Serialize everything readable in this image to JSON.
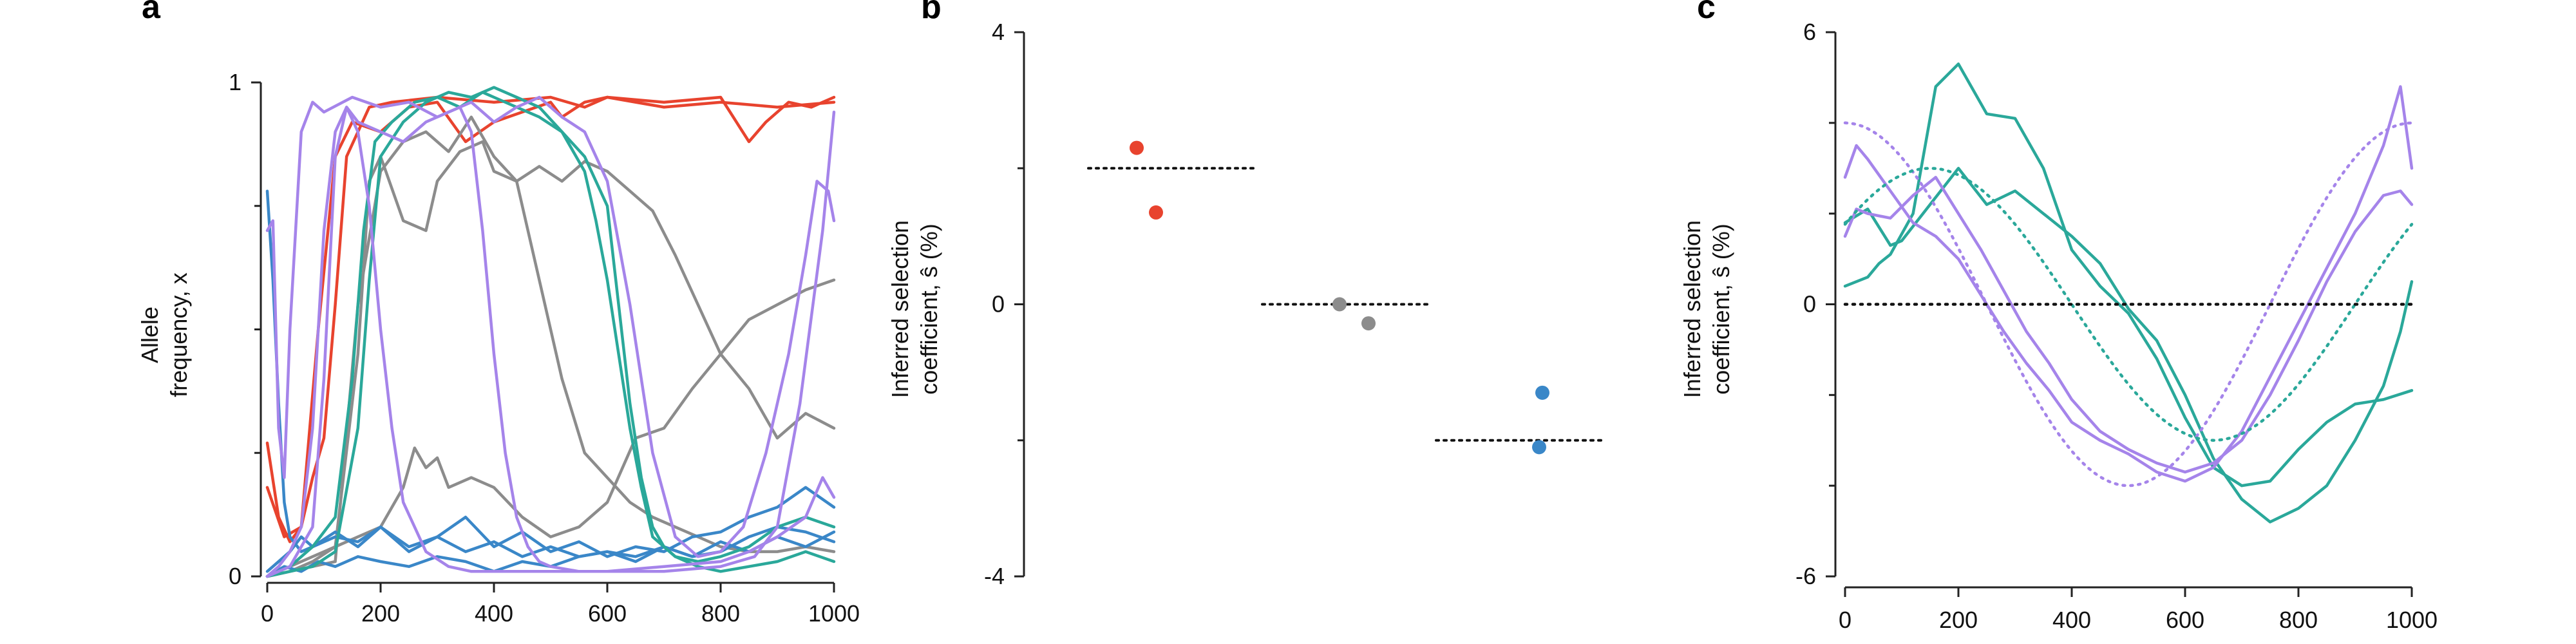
{
  "colors": {
    "red": "#e8432e",
    "gray": "#8c8c8c",
    "blue": "#3a87c8",
    "teal": "#2aa89a",
    "purple": "#a584ea",
    "axis": "#222222",
    "dotted": "#111111"
  },
  "chart_data": [
    {
      "panel": "a",
      "type": "line",
      "title": "",
      "ylabel_lines": [
        "Allele",
        "frequency, x"
      ],
      "xlabel": "",
      "xlim": [
        0,
        1000
      ],
      "ylim": [
        0,
        1
      ],
      "xticks": [
        "0",
        "200",
        "400",
        "600",
        "800",
        "1000"
      ],
      "yticks": [
        "0",
        "1"
      ],
      "series": [
        {
          "color": "red",
          "x": [
            0,
            20,
            40,
            60,
            80,
            100,
            120,
            140,
            180,
            220,
            300,
            400,
            500,
            560,
            600,
            700,
            800,
            850,
            880,
            920,
            960,
            1000
          ],
          "y": [
            0.27,
            0.12,
            0.07,
            0.1,
            0.2,
            0.28,
            0.55,
            0.85,
            0.95,
            0.96,
            0.97,
            0.96,
            0.97,
            0.95,
            0.97,
            0.96,
            0.97,
            0.88,
            0.92,
            0.96,
            0.95,
            0.97
          ]
        },
        {
          "color": "red",
          "x": [
            0,
            30,
            60,
            90,
            120,
            150,
            200,
            250,
            300,
            350,
            400,
            450,
            500,
            520,
            560,
            600,
            700,
            800,
            900,
            1000
          ],
          "y": [
            0.18,
            0.08,
            0.1,
            0.5,
            0.85,
            0.92,
            0.9,
            0.95,
            0.96,
            0.88,
            0.92,
            0.94,
            0.96,
            0.93,
            0.96,
            0.97,
            0.95,
            0.96,
            0.95,
            0.96
          ]
        },
        {
          "color": "gray",
          "x": [
            0,
            40,
            80,
            120,
            160,
            200,
            240,
            260,
            280,
            300,
            320,
            360,
            400,
            450,
            500,
            550,
            600,
            650,
            700,
            750,
            800,
            850,
            900,
            950,
            1000
          ],
          "y": [
            0.0,
            0.02,
            0.04,
            0.06,
            0.08,
            0.1,
            0.18,
            0.26,
            0.22,
            0.24,
            0.18,
            0.2,
            0.18,
            0.12,
            0.08,
            0.1,
            0.15,
            0.28,
            0.3,
            0.38,
            0.45,
            0.52,
            0.55,
            0.58,
            0.6
          ]
        },
        {
          "color": "gray",
          "x": [
            0,
            40,
            80,
            120,
            160,
            180,
            200,
            240,
            280,
            300,
            340,
            380,
            400,
            440,
            480,
            520,
            560,
            600,
            640,
            680,
            720,
            760,
            800,
            850,
            900,
            950,
            1000
          ],
          "y": [
            0.0,
            0.01,
            0.03,
            0.06,
            0.45,
            0.8,
            0.85,
            0.72,
            0.7,
            0.8,
            0.86,
            0.88,
            0.82,
            0.8,
            0.83,
            0.8,
            0.84,
            0.82,
            0.78,
            0.74,
            0.65,
            0.55,
            0.45,
            0.38,
            0.28,
            0.33,
            0.3
          ]
        },
        {
          "color": "gray",
          "x": [
            0,
            40,
            80,
            120,
            160,
            200,
            240,
            280,
            320,
            360,
            400,
            440,
            480,
            520,
            560,
            600,
            640,
            680,
            720,
            760,
            800,
            850,
            900,
            950,
            1000
          ],
          "y": [
            0.0,
            0.01,
            0.02,
            0.03,
            0.55,
            0.82,
            0.88,
            0.9,
            0.86,
            0.93,
            0.85,
            0.8,
            0.6,
            0.4,
            0.25,
            0.2,
            0.15,
            0.12,
            0.1,
            0.08,
            0.06,
            0.05,
            0.05,
            0.06,
            0.05
          ]
        },
        {
          "color": "blue",
          "x": [
            0,
            10,
            20,
            30,
            40,
            60,
            80,
            120,
            160,
            200,
            250,
            300,
            350,
            400,
            450,
            500,
            550,
            600,
            650,
            700,
            750,
            800,
            850,
            900,
            950,
            1000
          ],
          "y": [
            0.78,
            0.6,
            0.35,
            0.15,
            0.08,
            0.05,
            0.06,
            0.08,
            0.07,
            0.1,
            0.06,
            0.08,
            0.05,
            0.07,
            0.04,
            0.06,
            0.04,
            0.05,
            0.04,
            0.06,
            0.04,
            0.05,
            0.08,
            0.1,
            0.09,
            0.07
          ]
        },
        {
          "color": "blue",
          "x": [
            0,
            20,
            40,
            60,
            80,
            120,
            160,
            200,
            250,
            300,
            350,
            400,
            450,
            500,
            550,
            600,
            650,
            700,
            750,
            800,
            850,
            900,
            950,
            1000
          ],
          "y": [
            0.01,
            0.03,
            0.05,
            0.08,
            0.06,
            0.09,
            0.06,
            0.1,
            0.05,
            0.08,
            0.12,
            0.06,
            0.09,
            0.05,
            0.07,
            0.04,
            0.06,
            0.05,
            0.08,
            0.09,
            0.12,
            0.14,
            0.18,
            0.14
          ]
        },
        {
          "color": "blue",
          "x": [
            0,
            30,
            60,
            90,
            120,
            160,
            200,
            250,
            300,
            350,
            400,
            450,
            500,
            550,
            600,
            650,
            700,
            750,
            800,
            850,
            900,
            950,
            1000
          ],
          "y": [
            0.0,
            0.02,
            0.01,
            0.03,
            0.02,
            0.04,
            0.03,
            0.02,
            0.04,
            0.03,
            0.01,
            0.03,
            0.02,
            0.04,
            0.05,
            0.03,
            0.06,
            0.04,
            0.07,
            0.05,
            0.08,
            0.06,
            0.09
          ]
        },
        {
          "color": "teal",
          "x": [
            0,
            40,
            80,
            120,
            150,
            170,
            190,
            220,
            260,
            300,
            340,
            380,
            400,
            440,
            480,
            520,
            560,
            600,
            620,
            640,
            660,
            680,
            700,
            720,
            760,
            800,
            850,
            900,
            950,
            1000
          ],
          "y": [
            0.0,
            0.02,
            0.06,
            0.12,
            0.4,
            0.7,
            0.88,
            0.92,
            0.96,
            0.97,
            0.95,
            0.98,
            0.97,
            0.95,
            0.93,
            0.9,
            0.85,
            0.75,
            0.55,
            0.35,
            0.2,
            0.1,
            0.06,
            0.04,
            0.03,
            0.04,
            0.06,
            0.1,
            0.12,
            0.1
          ]
        },
        {
          "color": "teal",
          "x": [
            0,
            40,
            80,
            120,
            160,
            180,
            200,
            240,
            280,
            320,
            360,
            400,
            440,
            480,
            520,
            560,
            580,
            600,
            620,
            640,
            660,
            680,
            720,
            760,
            800,
            850,
            900,
            950,
            1000
          ],
          "y": [
            0.0,
            0.01,
            0.02,
            0.05,
            0.3,
            0.6,
            0.85,
            0.92,
            0.96,
            0.98,
            0.97,
            0.99,
            0.97,
            0.95,
            0.9,
            0.82,
            0.72,
            0.6,
            0.45,
            0.3,
            0.18,
            0.08,
            0.04,
            0.02,
            0.01,
            0.02,
            0.03,
            0.05,
            0.03
          ]
        },
        {
          "color": "purple",
          "x": [
            0,
            10,
            20,
            30,
            40,
            60,
            80,
            100,
            150,
            200,
            250,
            300,
            340,
            360,
            380,
            400,
            420,
            440,
            460,
            480,
            500,
            550,
            600,
            700,
            800,
            850,
            900,
            950,
            980,
            1000
          ],
          "y": [
            0.7,
            0.72,
            0.3,
            0.2,
            0.5,
            0.9,
            0.96,
            0.94,
            0.97,
            0.95,
            0.96,
            0.93,
            0.95,
            0.9,
            0.7,
            0.45,
            0.25,
            0.12,
            0.06,
            0.03,
            0.02,
            0.01,
            0.01,
            0.02,
            0.03,
            0.05,
            0.08,
            0.12,
            0.2,
            0.16
          ]
        },
        {
          "color": "purple",
          "x": [
            0,
            20,
            40,
            60,
            80,
            100,
            120,
            140,
            160,
            200,
            240,
            280,
            320,
            360,
            400,
            440,
            480,
            520,
            560,
            600,
            640,
            680,
            720,
            760,
            800,
            840,
            880,
            920,
            950,
            970,
            990,
            1000
          ],
          "y": [
            0.0,
            0.02,
            0.05,
            0.1,
            0.3,
            0.7,
            0.9,
            0.95,
            0.92,
            0.9,
            0.88,
            0.92,
            0.94,
            0.96,
            0.92,
            0.95,
            0.97,
            0.93,
            0.9,
            0.8,
            0.55,
            0.25,
            0.08,
            0.04,
            0.05,
            0.1,
            0.25,
            0.45,
            0.65,
            0.8,
            0.78,
            0.72
          ]
        },
        {
          "color": "purple",
          "x": [
            0,
            40,
            80,
            100,
            120,
            140,
            160,
            180,
            200,
            220,
            240,
            280,
            320,
            360,
            400,
            500,
            600,
            700,
            800,
            860,
            900,
            940,
            980,
            1000
          ],
          "y": [
            0.0,
            0.02,
            0.1,
            0.4,
            0.85,
            0.95,
            0.9,
            0.75,
            0.5,
            0.3,
            0.15,
            0.05,
            0.02,
            0.01,
            0.01,
            0.01,
            0.01,
            0.01,
            0.02,
            0.04,
            0.1,
            0.35,
            0.7,
            0.94
          ]
        }
      ]
    },
    {
      "panel": "b",
      "type": "scatter",
      "title": "",
      "ylabel_lines": [
        "Inferred selection",
        "coefficient, ŝ (%)"
      ],
      "ylim": [
        -4,
        4
      ],
      "yticks": [
        "4",
        "0",
        "-4"
      ],
      "groups": [
        {
          "color": "red",
          "true_s": 2,
          "points": [
            2.3,
            1.35
          ]
        },
        {
          "color": "gray",
          "true_s": 0,
          "points": [
            0.0,
            -0.28
          ]
        },
        {
          "color": "blue",
          "true_s": -2,
          "points": [
            -1.3,
            -2.1
          ]
        }
      ]
    },
    {
      "panel": "c",
      "type": "line",
      "title": "",
      "ylabel_lines": [
        "Inferred selection",
        "coefficient, ŝ (%)"
      ],
      "xlim": [
        0,
        1000
      ],
      "ylim": [
        -6,
        6
      ],
      "xticks": [
        "0",
        "200",
        "400",
        "600",
        "800",
        "1000"
      ],
      "yticks": [
        "6",
        "0",
        "-6"
      ],
      "series": [
        {
          "color": "teal",
          "style": "solid",
          "x": [
            0,
            40,
            60,
            80,
            120,
            160,
            200,
            250,
            300,
            350,
            400,
            450,
            500,
            550,
            600,
            650,
            700,
            750,
            800,
            850,
            900,
            950,
            1000
          ],
          "y": [
            0.4,
            0.6,
            0.9,
            1.1,
            2.0,
            4.8,
            5.3,
            4.2,
            4.1,
            3.0,
            1.2,
            0.4,
            -0.2,
            -1.2,
            -2.5,
            -3.6,
            -4.0,
            -3.9,
            -3.2,
            -2.6,
            -2.2,
            -2.1,
            -1.9
          ]
        },
        {
          "color": "teal",
          "style": "solid",
          "x": [
            0,
            40,
            60,
            80,
            100,
            150,
            200,
            250,
            300,
            350,
            400,
            450,
            500,
            550,
            600,
            650,
            700,
            750,
            800,
            850,
            900,
            950,
            980,
            1000
          ],
          "y": [
            1.8,
            2.1,
            1.7,
            1.3,
            1.4,
            2.2,
            3.0,
            2.2,
            2.5,
            2.0,
            1.5,
            0.9,
            -0.1,
            -0.8,
            -2.0,
            -3.4,
            -4.3,
            -4.8,
            -4.5,
            -4.0,
            -3.0,
            -1.8,
            -0.6,
            0.5
          ]
        },
        {
          "color": "purple",
          "style": "solid",
          "x": [
            0,
            20,
            40,
            80,
            120,
            160,
            200,
            240,
            280,
            320,
            360,
            400,
            450,
            500,
            550,
            600,
            650,
            700,
            750,
            800,
            850,
            900,
            950,
            980,
            1000
          ],
          "y": [
            2.8,
            3.5,
            3.2,
            2.5,
            1.8,
            1.5,
            1.0,
            0.2,
            -0.6,
            -1.3,
            -1.9,
            -2.6,
            -3.0,
            -3.3,
            -3.7,
            -3.9,
            -3.6,
            -2.8,
            -1.6,
            -0.4,
            0.8,
            2.0,
            3.5,
            4.8,
            3.0
          ]
        },
        {
          "color": "purple",
          "style": "solid",
          "x": [
            0,
            20,
            40,
            80,
            120,
            160,
            200,
            240,
            280,
            320,
            360,
            400,
            450,
            500,
            550,
            600,
            650,
            700,
            750,
            800,
            850,
            900,
            950,
            980,
            1000
          ],
          "y": [
            1.5,
            2.1,
            2.0,
            1.9,
            2.4,
            2.8,
            2.0,
            1.2,
            0.3,
            -0.6,
            -1.3,
            -2.1,
            -2.8,
            -3.2,
            -3.5,
            -3.7,
            -3.5,
            -3.0,
            -2.0,
            -0.8,
            0.5,
            1.6,
            2.4,
            2.5,
            2.2
          ]
        },
        {
          "color": "purple",
          "style": "dotted",
          "func": "cos"
        },
        {
          "color": "teal",
          "style": "dotted",
          "func": "sin"
        },
        {
          "color": "dotted",
          "style": "dotted",
          "func": "zero"
        }
      ]
    }
  ]
}
